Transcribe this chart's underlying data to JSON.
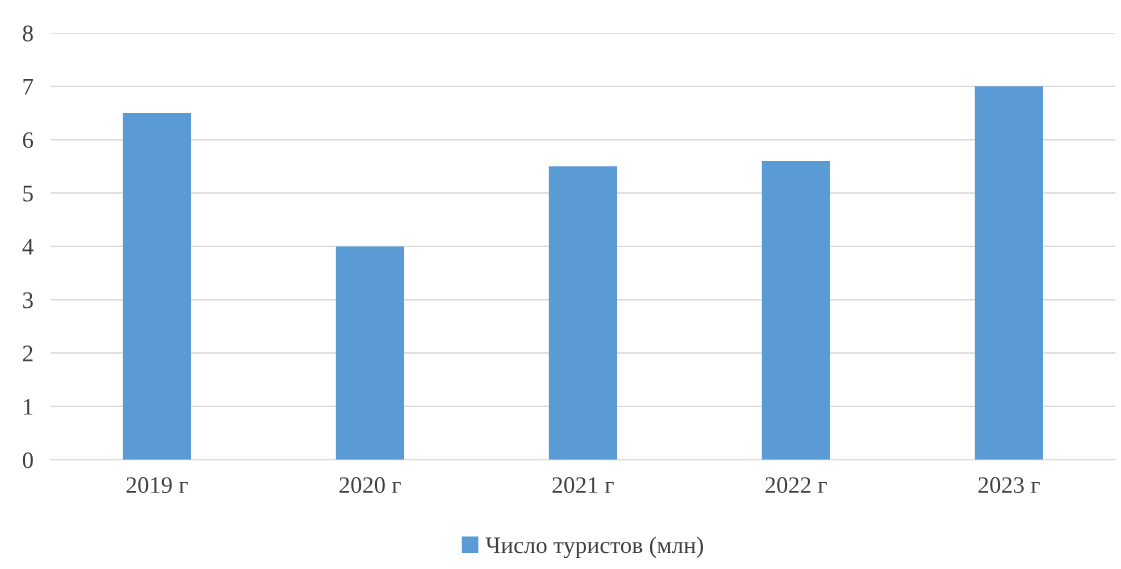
{
  "chart_data": {
    "type": "bar",
    "categories": [
      "2019 г",
      "2020 г",
      "2021 г",
      "2022 г",
      "2023 г"
    ],
    "series": [
      {
        "name": "Число туристов (млн)",
        "color": "#5b9bd5",
        "values": [
          6.5,
          4.0,
          5.5,
          5.6,
          7.0
        ]
      }
    ],
    "ylim": [
      0,
      8
    ],
    "yticks": [
      0,
      1,
      2,
      3,
      4,
      5,
      6,
      7,
      8
    ],
    "grid": "y",
    "legend": "bottom"
  }
}
